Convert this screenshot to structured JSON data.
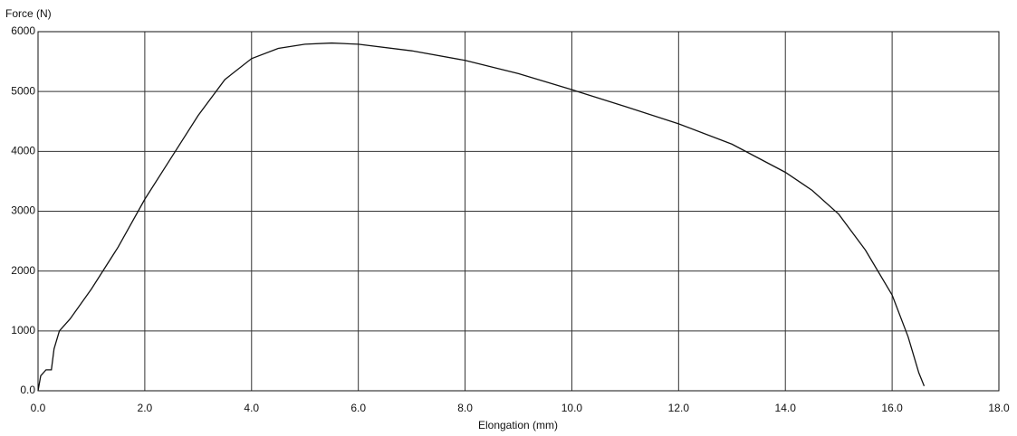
{
  "chart_data": {
    "type": "line",
    "x_label": "Elongation (mm)",
    "y_label": "Force (N)",
    "color": "#111111",
    "grid": true,
    "x": [
      0,
      0.05,
      0.15,
      0.25,
      0.3,
      0.4,
      0.6,
      1.0,
      1.5,
      2.0,
      2.5,
      3.0,
      3.5,
      4.0,
      4.5,
      5.0,
      5.5,
      6.0,
      7.0,
      8.0,
      9.0,
      10.0,
      11.0,
      12.0,
      13.0,
      14.0,
      14.5,
      15.0,
      15.5,
      16.0,
      16.3,
      16.5,
      16.6
    ],
    "values": [
      0,
      250,
      350,
      350,
      700,
      1000,
      1200,
      1700,
      2400,
      3200,
      3900,
      4600,
      5200,
      5550,
      5720,
      5790,
      5810,
      5790,
      5680,
      5520,
      5300,
      5030,
      4750,
      4460,
      4120,
      3650,
      3350,
      2950,
      2350,
      1600,
      900,
      300,
      80
    ],
    "xlim": [
      0,
      18
    ],
    "ylim": [
      0,
      6000
    ],
    "xticks": [
      {
        "value": 0,
        "label": "0.0"
      },
      {
        "value": 2,
        "label": "2.0"
      },
      {
        "value": 4,
        "label": "4.0"
      },
      {
        "value": 6,
        "label": "6.0"
      },
      {
        "value": 8,
        "label": "8.0"
      },
      {
        "value": 10,
        "label": "10.0"
      },
      {
        "value": 12,
        "label": "12.0"
      },
      {
        "value": 14,
        "label": "14.0"
      },
      {
        "value": 16,
        "label": "16.0"
      },
      {
        "value": 18,
        "label": "18.0"
      }
    ],
    "yticks": [
      {
        "value": 0,
        "label": "0.0"
      },
      1000,
      2000,
      3000,
      4000,
      5000,
      6000
    ]
  }
}
